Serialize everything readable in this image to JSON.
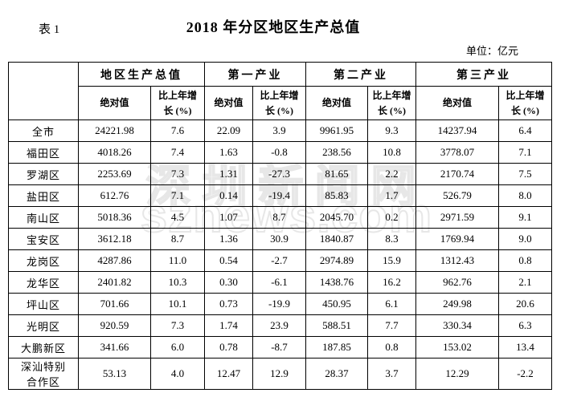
{
  "header": {
    "table_label": "表 1",
    "title": "2018 年分区地区生产总值",
    "unit_note": "单位：亿元"
  },
  "watermark": {
    "line1": "深圳新闻网",
    "line2": "sznews.com"
  },
  "table": {
    "corner": "",
    "groups": [
      "地区生产总值",
      "第一产业",
      "第二产业",
      "第三产业"
    ],
    "sub_abs": "绝对值",
    "sub_growth": "比上年增\n长 (%)",
    "rows": [
      {
        "region": "全市",
        "values": [
          "24221.98",
          "7.6",
          "22.09",
          "3.9",
          "9961.95",
          "9.3",
          "14237.94",
          "6.4"
        ]
      },
      {
        "region": "福田区",
        "values": [
          "4018.26",
          "7.4",
          "1.63",
          "-0.8",
          "238.56",
          "10.8",
          "3778.07",
          "7.1"
        ]
      },
      {
        "region": "罗湖区",
        "values": [
          "2253.69",
          "7.3",
          "1.31",
          "-27.3",
          "81.65",
          "2.2",
          "2170.74",
          "7.5"
        ]
      },
      {
        "region": "盐田区",
        "values": [
          "612.76",
          "7.1",
          "0.14",
          "-19.4",
          "85.83",
          "1.7",
          "526.79",
          "8.0"
        ]
      },
      {
        "region": "南山区",
        "values": [
          "5018.36",
          "4.5",
          "1.07",
          "8.7",
          "2045.70",
          "0.2",
          "2971.59",
          "9.1"
        ]
      },
      {
        "region": "宝安区",
        "values": [
          "3612.18",
          "8.7",
          "1.36",
          "30.9",
          "1840.87",
          "8.3",
          "1769.94",
          "9.0"
        ]
      },
      {
        "region": "龙岗区",
        "values": [
          "4287.86",
          "11.0",
          "0.54",
          "-2.7",
          "2974.89",
          "15.9",
          "1312.43",
          "0.8"
        ]
      },
      {
        "region": "龙华区",
        "values": [
          "2401.82",
          "10.3",
          "0.30",
          "-6.1",
          "1438.76",
          "16.2",
          "962.76",
          "2.1"
        ]
      },
      {
        "region": "坪山区",
        "values": [
          "701.66",
          "10.1",
          "0.73",
          "-19.9",
          "450.95",
          "6.1",
          "249.98",
          "20.6"
        ]
      },
      {
        "region": "光明区",
        "values": [
          "920.59",
          "7.3",
          "1.74",
          "23.9",
          "588.51",
          "7.7",
          "330.34",
          "6.3"
        ]
      },
      {
        "region": "大鹏新区",
        "values": [
          "341.66",
          "6.0",
          "0.78",
          "-8.7",
          "187.85",
          "0.8",
          "153.02",
          "13.4"
        ]
      },
      {
        "region": "深汕特别\n合作区",
        "values": [
          "53.13",
          "4.0",
          "12.47",
          "12.9",
          "28.37",
          "3.7",
          "12.29",
          "-2.2"
        ]
      }
    ]
  },
  "colors": {
    "background": "#ffffff",
    "text": "#000000",
    "border": "#000000",
    "watermark": "#e7e7e7"
  }
}
